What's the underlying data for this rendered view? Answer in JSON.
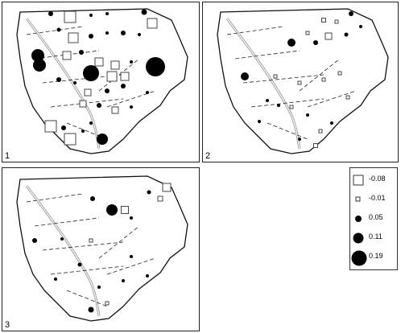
{
  "panels": [
    {
      "label": "1"
    },
    {
      "label": "2"
    },
    {
      "label": "3"
    }
  ],
  "legend": {
    "items": [
      {
        "symbol": "square",
        "value": "-0.08"
      },
      {
        "symbol": "square",
        "value": "-0.01"
      },
      {
        "symbol": "circle",
        "value": "0.05"
      },
      {
        "symbol": "circle",
        "value": "0.11"
      },
      {
        "symbol": "circle",
        "value": "0.19"
      }
    ]
  },
  "colors": {
    "positive": "#000000",
    "negative_outline": "#333333",
    "outline": "#111111",
    "river": "#999999"
  }
}
